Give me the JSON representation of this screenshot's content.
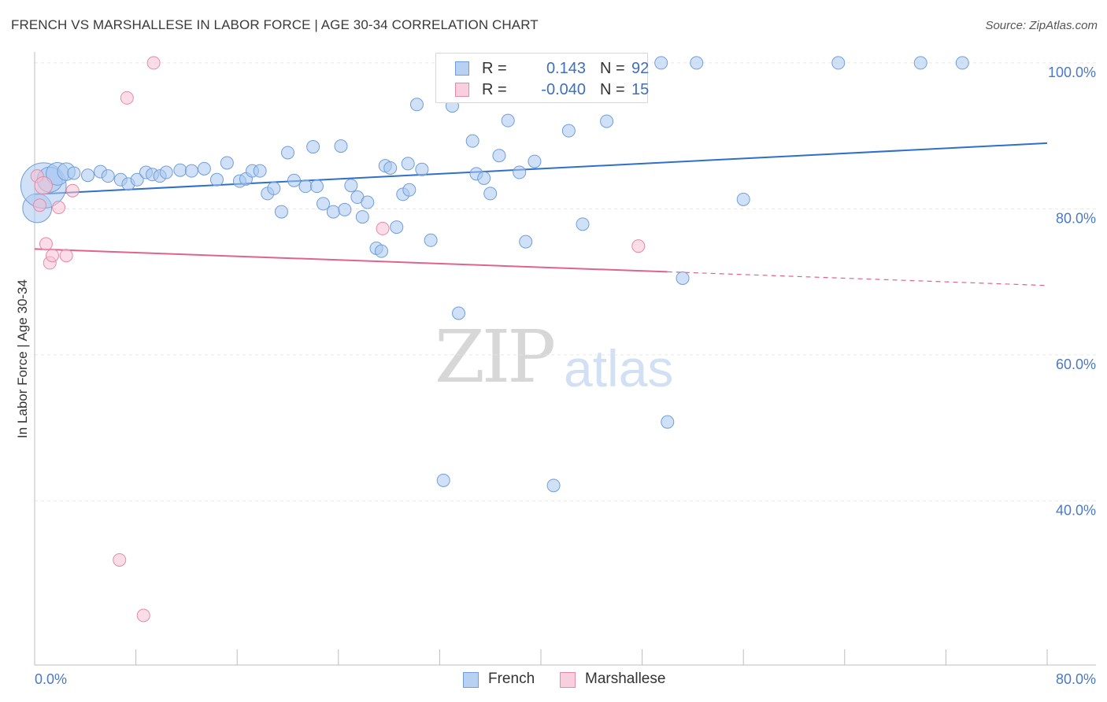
{
  "title": "FRENCH VS MARSHALLESE IN LABOR FORCE | AGE 30-34 CORRELATION CHART",
  "source": "Source: ZipAtlas.com",
  "watermark": {
    "zip": "ZIP",
    "atlas": "atlas"
  },
  "stats": [
    {
      "r_label": "R =",
      "r_value": "0.143",
      "n_label": "N =",
      "n_value": "92",
      "color": "#a9c8f0",
      "border": "#6f9edb"
    },
    {
      "r_label": "R =",
      "r_value": "-0.040",
      "n_label": "N =",
      "n_value": "15",
      "color": "#f6c1d1",
      "border": "#e68aa7"
    }
  ],
  "legend": [
    {
      "label": "French",
      "color": "#b8d1f2",
      "border": "#6f9edb"
    },
    {
      "label": "Marshallese",
      "color": "#f8cfdc",
      "border": "#e68aa7"
    }
  ],
  "chart_data": {
    "type": "scatter",
    "title": "FRENCH VS MARSHALLESE IN LABOR FORCE | AGE 30-34 CORRELATION CHART",
    "xlabel": "",
    "ylabel": "In Labor Force | Age 30-34",
    "xlim": [
      0,
      80
    ],
    "ylim": [
      17.5,
      101.5
    ],
    "x_tick_labels": [
      "0.0%",
      "80.0%"
    ],
    "y_ticks": [
      40,
      60,
      80,
      100
    ],
    "y_tick_labels": [
      "40.0%",
      "60.0%",
      "80.0%",
      "100.0%"
    ],
    "grid": true,
    "legend_position": "bottom",
    "series": [
      {
        "name": "French",
        "color": "#a9c8f0",
        "stroke": "#6f9edb",
        "trend": {
          "x": [
            0,
            80
          ],
          "y": [
            82.0,
            89.0
          ],
          "color": "#2f6fcc"
        },
        "points": [
          [
            0.2,
            80.1,
            2.3
          ],
          [
            0.7,
            83.2,
            3.6
          ],
          [
            1.2,
            84.0,
            2.0
          ],
          [
            1.8,
            84.8,
            1.8
          ],
          [
            2.5,
            85.1,
            1.4
          ],
          [
            3.1,
            84.9,
            1.0
          ],
          [
            4.2,
            84.6,
            1.0
          ],
          [
            5.2,
            85.1,
            1.0
          ],
          [
            5.8,
            84.5,
            1.0
          ],
          [
            6.8,
            84.0,
            1.0
          ],
          [
            7.4,
            83.4,
            1.0
          ],
          [
            8.1,
            84.0,
            1.0
          ],
          [
            8.8,
            85.0,
            1.0
          ],
          [
            9.3,
            84.7,
            1.0
          ],
          [
            9.9,
            84.5,
            1.0
          ],
          [
            10.4,
            85.0,
            1.0
          ],
          [
            11.5,
            85.3,
            1.0
          ],
          [
            12.4,
            85.2,
            1.0
          ],
          [
            13.4,
            85.5,
            1.0
          ],
          [
            14.4,
            84.0,
            1.0
          ],
          [
            15.2,
            86.3,
            1.0
          ],
          [
            16.2,
            83.8,
            1.0
          ],
          [
            16.7,
            84.1,
            1.0
          ],
          [
            17.2,
            85.2,
            1.0
          ],
          [
            17.8,
            85.2,
            1.0
          ],
          [
            18.4,
            82.1,
            1.0
          ],
          [
            18.9,
            82.8,
            1.0
          ],
          [
            19.5,
            79.6,
            1.0
          ],
          [
            20.0,
            87.7,
            1.0
          ],
          [
            20.5,
            83.9,
            1.0
          ],
          [
            21.4,
            83.1,
            1.0
          ],
          [
            22.0,
            88.5,
            1.0
          ],
          [
            22.3,
            83.1,
            1.0
          ],
          [
            22.8,
            80.7,
            1.0
          ],
          [
            23.6,
            79.6,
            1.0
          ],
          [
            24.2,
            88.6,
            1.0
          ],
          [
            24.5,
            79.9,
            1.0
          ],
          [
            25.0,
            83.2,
            1.0
          ],
          [
            25.5,
            81.6,
            1.0
          ],
          [
            25.9,
            78.9,
            1.0
          ],
          [
            26.3,
            80.9,
            1.0
          ],
          [
            27.0,
            74.6,
            1.0
          ],
          [
            27.4,
            74.2,
            1.0
          ],
          [
            27.7,
            85.9,
            1.0
          ],
          [
            28.1,
            85.6,
            1.0
          ],
          [
            28.6,
            77.5,
            1.0
          ],
          [
            29.1,
            82.0,
            1.0
          ],
          [
            29.6,
            82.6,
            1.0
          ],
          [
            30.2,
            94.3,
            1.0
          ],
          [
            30.6,
            85.4,
            1.0
          ],
          [
            31.3,
            75.7,
            1.0
          ],
          [
            32.3,
            42.8,
            1.0
          ],
          [
            33.0,
            94.1,
            1.0
          ],
          [
            33.5,
            65.7,
            1.0
          ],
          [
            34.0,
            95.7,
            1.0
          ],
          [
            34.6,
            89.3,
            1.0
          ],
          [
            34.9,
            84.8,
            1.0
          ],
          [
            35.5,
            84.2,
            1.0
          ],
          [
            36.0,
            82.1,
            1.0
          ],
          [
            36.7,
            87.3,
            1.0
          ],
          [
            37.4,
            92.1,
            1.0
          ],
          [
            37.9,
            100.0,
            1.0
          ],
          [
            38.3,
            85.0,
            1.0
          ],
          [
            38.8,
            75.5,
            1.0
          ],
          [
            41.0,
            42.1,
            1.0
          ],
          [
            42.2,
            90.7,
            1.0
          ],
          [
            42.7,
            95.5,
            1.0
          ],
          [
            43.3,
            77.9,
            1.0
          ],
          [
            45.5,
            100.0,
            1.0
          ],
          [
            49.5,
            100.0,
            1.0
          ],
          [
            50.0,
            50.8,
            1.0
          ],
          [
            51.2,
            70.5,
            1.0
          ],
          [
            52.3,
            100.0,
            1.0
          ],
          [
            56.0,
            81.3,
            1.0
          ],
          [
            63.5,
            100.0,
            1.0
          ],
          [
            70.0,
            100.0,
            1.0
          ],
          [
            73.3,
            100.0,
            1.0
          ],
          [
            39.5,
            86.5,
            1.0
          ],
          [
            45.2,
            92.0,
            1.0
          ],
          [
            29.5,
            86.2,
            1.0
          ]
        ]
      },
      {
        "name": "Marshallese",
        "color": "#f6c1d1",
        "stroke": "#e68aa7",
        "trend": {
          "x": [
            0,
            80
          ],
          "y": [
            74.5,
            69.5
          ],
          "solid_until_x": 50,
          "color": "#e0638e"
        },
        "points": [
          [
            0.2,
            84.5,
            1.0
          ],
          [
            0.4,
            80.5,
            1.0
          ],
          [
            0.7,
            83.2,
            1.4
          ],
          [
            0.9,
            75.2,
            1.0
          ],
          [
            1.2,
            72.6,
            1.0
          ],
          [
            1.4,
            73.6,
            1.0
          ],
          [
            1.9,
            80.2,
            1.0
          ],
          [
            2.5,
            73.6,
            1.0
          ],
          [
            3.0,
            82.5,
            1.0
          ],
          [
            6.7,
            31.9,
            1.0
          ],
          [
            7.3,
            95.2,
            1.0
          ],
          [
            8.6,
            24.3,
            1.0
          ],
          [
            9.4,
            100.0,
            1.0
          ],
          [
            27.5,
            77.3,
            1.0
          ],
          [
            47.7,
            74.9,
            1.0
          ]
        ]
      }
    ]
  }
}
